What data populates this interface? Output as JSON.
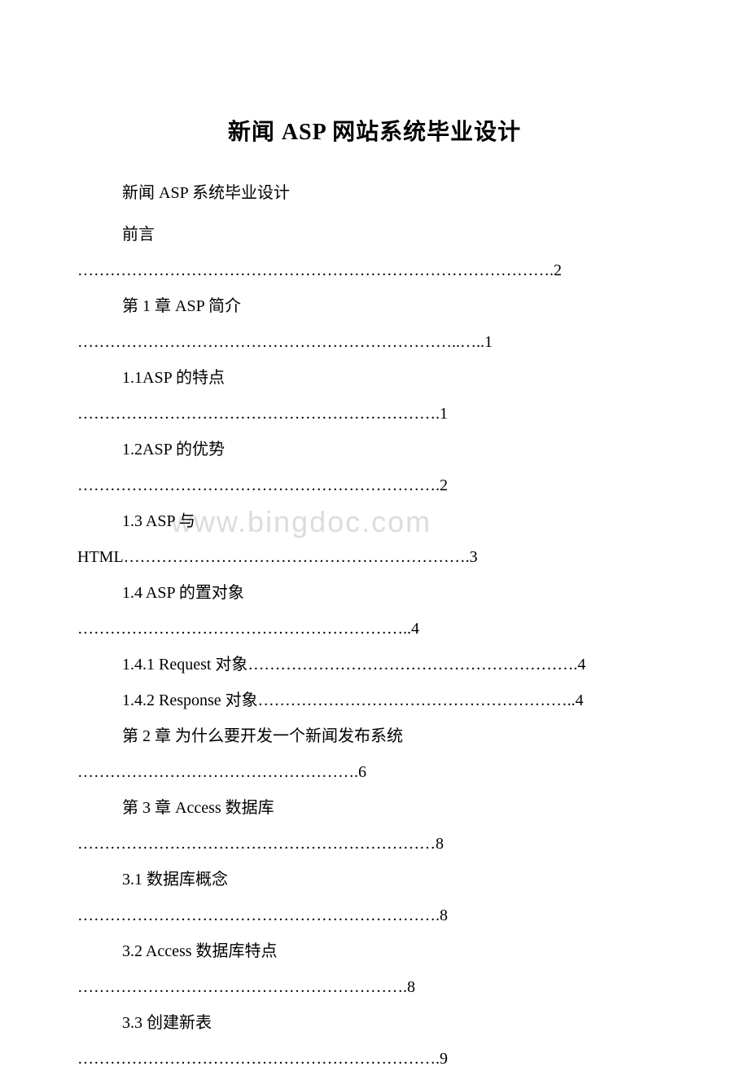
{
  "document": {
    "title": "新闻 ASP 网站系统毕业设计",
    "subtitle": "新闻 ASP 系统毕业设计",
    "watermark": "www.bingdoc.com",
    "background_color": "#ffffff",
    "text_color": "#000000",
    "watermark_color": "#dcdcdc",
    "title_fontsize": 28,
    "body_fontsize": 20
  },
  "toc": {
    "entries": [
      {
        "label_line": "前言",
        "cont_line": "…………………………………………………………………………….2"
      },
      {
        "label_line": "第 1 章 ASP 简介",
        "cont_line": "……………………………………………………………..…..1"
      },
      {
        "label_line": "1.1ASP 的特点",
        "cont_line": "………………………………………………………….1"
      },
      {
        "label_line": "1.2ASP 的优势",
        "cont_line": "………………………………………………………….2"
      },
      {
        "label_line": "1.3 ASP 与",
        "cont_line": "HTML……………………………………………………….3"
      },
      {
        "label_line": "1.4 ASP 的置对象",
        "cont_line": "……………………………………………………..4"
      },
      {
        "label_line": "1.4.1 Request 对象…………………………………………………….4",
        "cont_line": ""
      },
      {
        "label_line": "1.4.2 Response 对象…………………………………………………..4",
        "cont_line": ""
      },
      {
        "label_line": "第 2 章  为什么要开发一个新闻发布系统",
        "cont_line": "…………………………………………….6"
      },
      {
        "label_line": "第 3 章  Access 数据库",
        "cont_line": "…………………………………………………………8"
      },
      {
        "label_line": "3.1  数据库概念",
        "cont_line": "………………………………………………………….8"
      },
      {
        "label_line": "3.2  Access 数据库特点",
        "cont_line": "…………………………………………………….8"
      },
      {
        "label_line": "3.3 创建新表",
        "cont_line": "………………………………………………………….9"
      }
    ]
  }
}
